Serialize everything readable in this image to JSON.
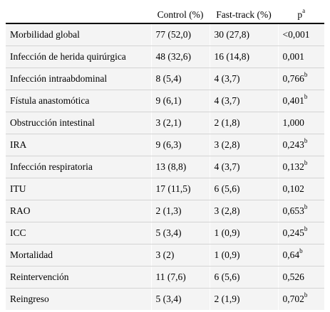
{
  "table": {
    "headers": [
      "",
      "Control (%)",
      "Fast-track (%)",
      "p",
      "a"
    ],
    "rows": [
      {
        "label": "Morbilidad global",
        "control": "77 (52,0)",
        "fasttrack": "30 (27,8)",
        "p": "<0,001",
        "sup": ""
      },
      {
        "label": "Infección de herida quirúrgica",
        "control": "48 (32,6)",
        "fasttrack": "16 (14,8)",
        "p": "0,001",
        "sup": ""
      },
      {
        "label": "Infección intraabdominal",
        "control": "8 (5,4)",
        "fasttrack": "4 (3,7)",
        "p": "0,766",
        "sup": "b"
      },
      {
        "label": "Fístula anastomótica",
        "control": "9 (6,1)",
        "fasttrack": "4 (3,7)",
        "p": "0,401",
        "sup": "b"
      },
      {
        "label": "Obstrucción intestinal",
        "control": "3 (2,1)",
        "fasttrack": "2 (1,8)",
        "p": "1,000",
        "sup": ""
      },
      {
        "label": "IRA",
        "control": "9 (6,3)",
        "fasttrack": "3 (2,8)",
        "p": "0,243",
        "sup": "b"
      },
      {
        "label": "Infección respiratoria",
        "control": "13 (8,8)",
        "fasttrack": "4 (3,7)",
        "p": "0,132",
        "sup": "b"
      },
      {
        "label": "ITU",
        "control": "17 (11,5)",
        "fasttrack": "6 (5,6)",
        "p": "0,102",
        "sup": ""
      },
      {
        "label": "RAO",
        "control": "2 (1,3)",
        "fasttrack": "3 (2,8)",
        "p": "0,653",
        "sup": "b"
      },
      {
        "label": "ICC",
        "control": "5 (3,4)",
        "fasttrack": "1 (0,9)",
        "p": "0,245",
        "sup": "b"
      },
      {
        "label": "Mortalidad",
        "control": "3 (2)",
        "fasttrack": "1 (0,9)",
        "p": "0,64",
        "sup": "b"
      },
      {
        "label": "Reintervención",
        "control": "11 (7,6)",
        "fasttrack": "6 (5,6)",
        "p": "0,526",
        "sup": ""
      },
      {
        "label": "Reingreso",
        "control": "5 (3,4)",
        "fasttrack": "2 (1,9)",
        "p": "0,702",
        "sup": "b"
      }
    ]
  }
}
